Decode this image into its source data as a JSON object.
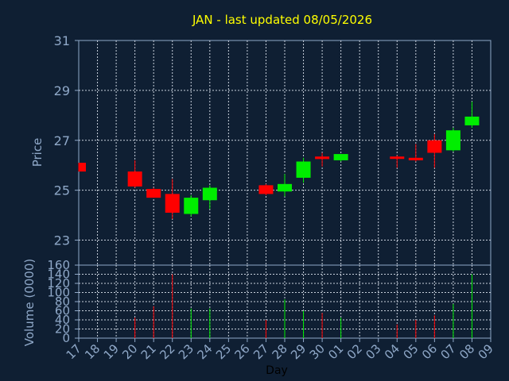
{
  "chart_data": {
    "type": "candlestick",
    "title": "JAN - last updated 08/05/2026",
    "price_panel": {
      "ylabel": "Price",
      "ylim": [
        22,
        31
      ],
      "yticks": [
        23,
        25,
        27,
        29,
        31
      ],
      "grid": true
    },
    "volume_panel": {
      "ylabel": "Volume (0000)",
      "ylim": [
        0,
        160
      ],
      "yticks": [
        0,
        20,
        40,
        60,
        80,
        100,
        120,
        140,
        160
      ],
      "grid": true
    },
    "xlabel": "Day",
    "x_tick_labels": [
      "17",
      "18",
      "19",
      "20",
      "21",
      "22",
      "23",
      "24",
      "25",
      "26",
      "27",
      "28",
      "29",
      "30",
      "01",
      "02",
      "03",
      "04",
      "05",
      "06",
      "07",
      "08",
      "09"
    ],
    "colors": {
      "up": "#00ee00",
      "down": "#ff0000",
      "background": "#0f1f33",
      "title": "#ffff00",
      "axis": "#8fa8c8"
    },
    "candles": [
      {
        "day": "17",
        "open": 26.1,
        "high": 26.1,
        "low": 25.75,
        "close": 25.75,
        "volume": 0
      },
      {
        "day": "20",
        "open": 25.75,
        "high": 26.2,
        "low": 25.1,
        "close": 25.15,
        "volume": 45
      },
      {
        "day": "21",
        "open": 25.05,
        "high": 25.1,
        "low": 24.7,
        "close": 24.7,
        "volume": 70
      },
      {
        "day": "22",
        "open": 24.85,
        "high": 25.45,
        "low": 23.85,
        "close": 24.1,
        "volume": 140
      },
      {
        "day": "23",
        "open": 24.05,
        "high": 24.8,
        "low": 23.95,
        "close": 24.7,
        "volume": 65
      },
      {
        "day": "24",
        "open": 24.6,
        "high": 25.2,
        "low": 24.25,
        "close": 25.1,
        "volume": 65
      },
      {
        "day": "27",
        "open": 25.2,
        "high": 25.25,
        "low": 24.8,
        "close": 24.85,
        "volume": 40
      },
      {
        "day": "28",
        "open": 24.95,
        "high": 25.65,
        "low": 24.75,
        "close": 25.25,
        "volume": 85
      },
      {
        "day": "29",
        "open": 25.5,
        "high": 26.3,
        "low": 25.3,
        "close": 26.15,
        "volume": 60
      },
      {
        "day": "30",
        "open": 26.35,
        "high": 26.5,
        "low": 25.95,
        "close": 26.25,
        "volume": 55
      },
      {
        "day": "01",
        "open": 26.2,
        "high": 26.45,
        "low": 26.15,
        "close": 26.45,
        "volume": 45
      },
      {
        "day": "04",
        "open": 26.35,
        "high": 26.4,
        "low": 25.9,
        "close": 26.3,
        "volume": 30
      },
      {
        "day": "05",
        "open": 26.3,
        "high": 26.85,
        "low": 26.15,
        "close": 26.2,
        "volume": 40
      },
      {
        "day": "06",
        "open": 27.0,
        "high": 27.25,
        "low": 25.9,
        "close": 26.5,
        "volume": 50
      },
      {
        "day": "07",
        "open": 26.6,
        "high": 27.5,
        "low": 26.55,
        "close": 27.4,
        "volume": 75
      },
      {
        "day": "08",
        "open": 27.6,
        "high": 28.55,
        "low": 27.5,
        "close": 27.95,
        "volume": 140
      }
    ]
  }
}
